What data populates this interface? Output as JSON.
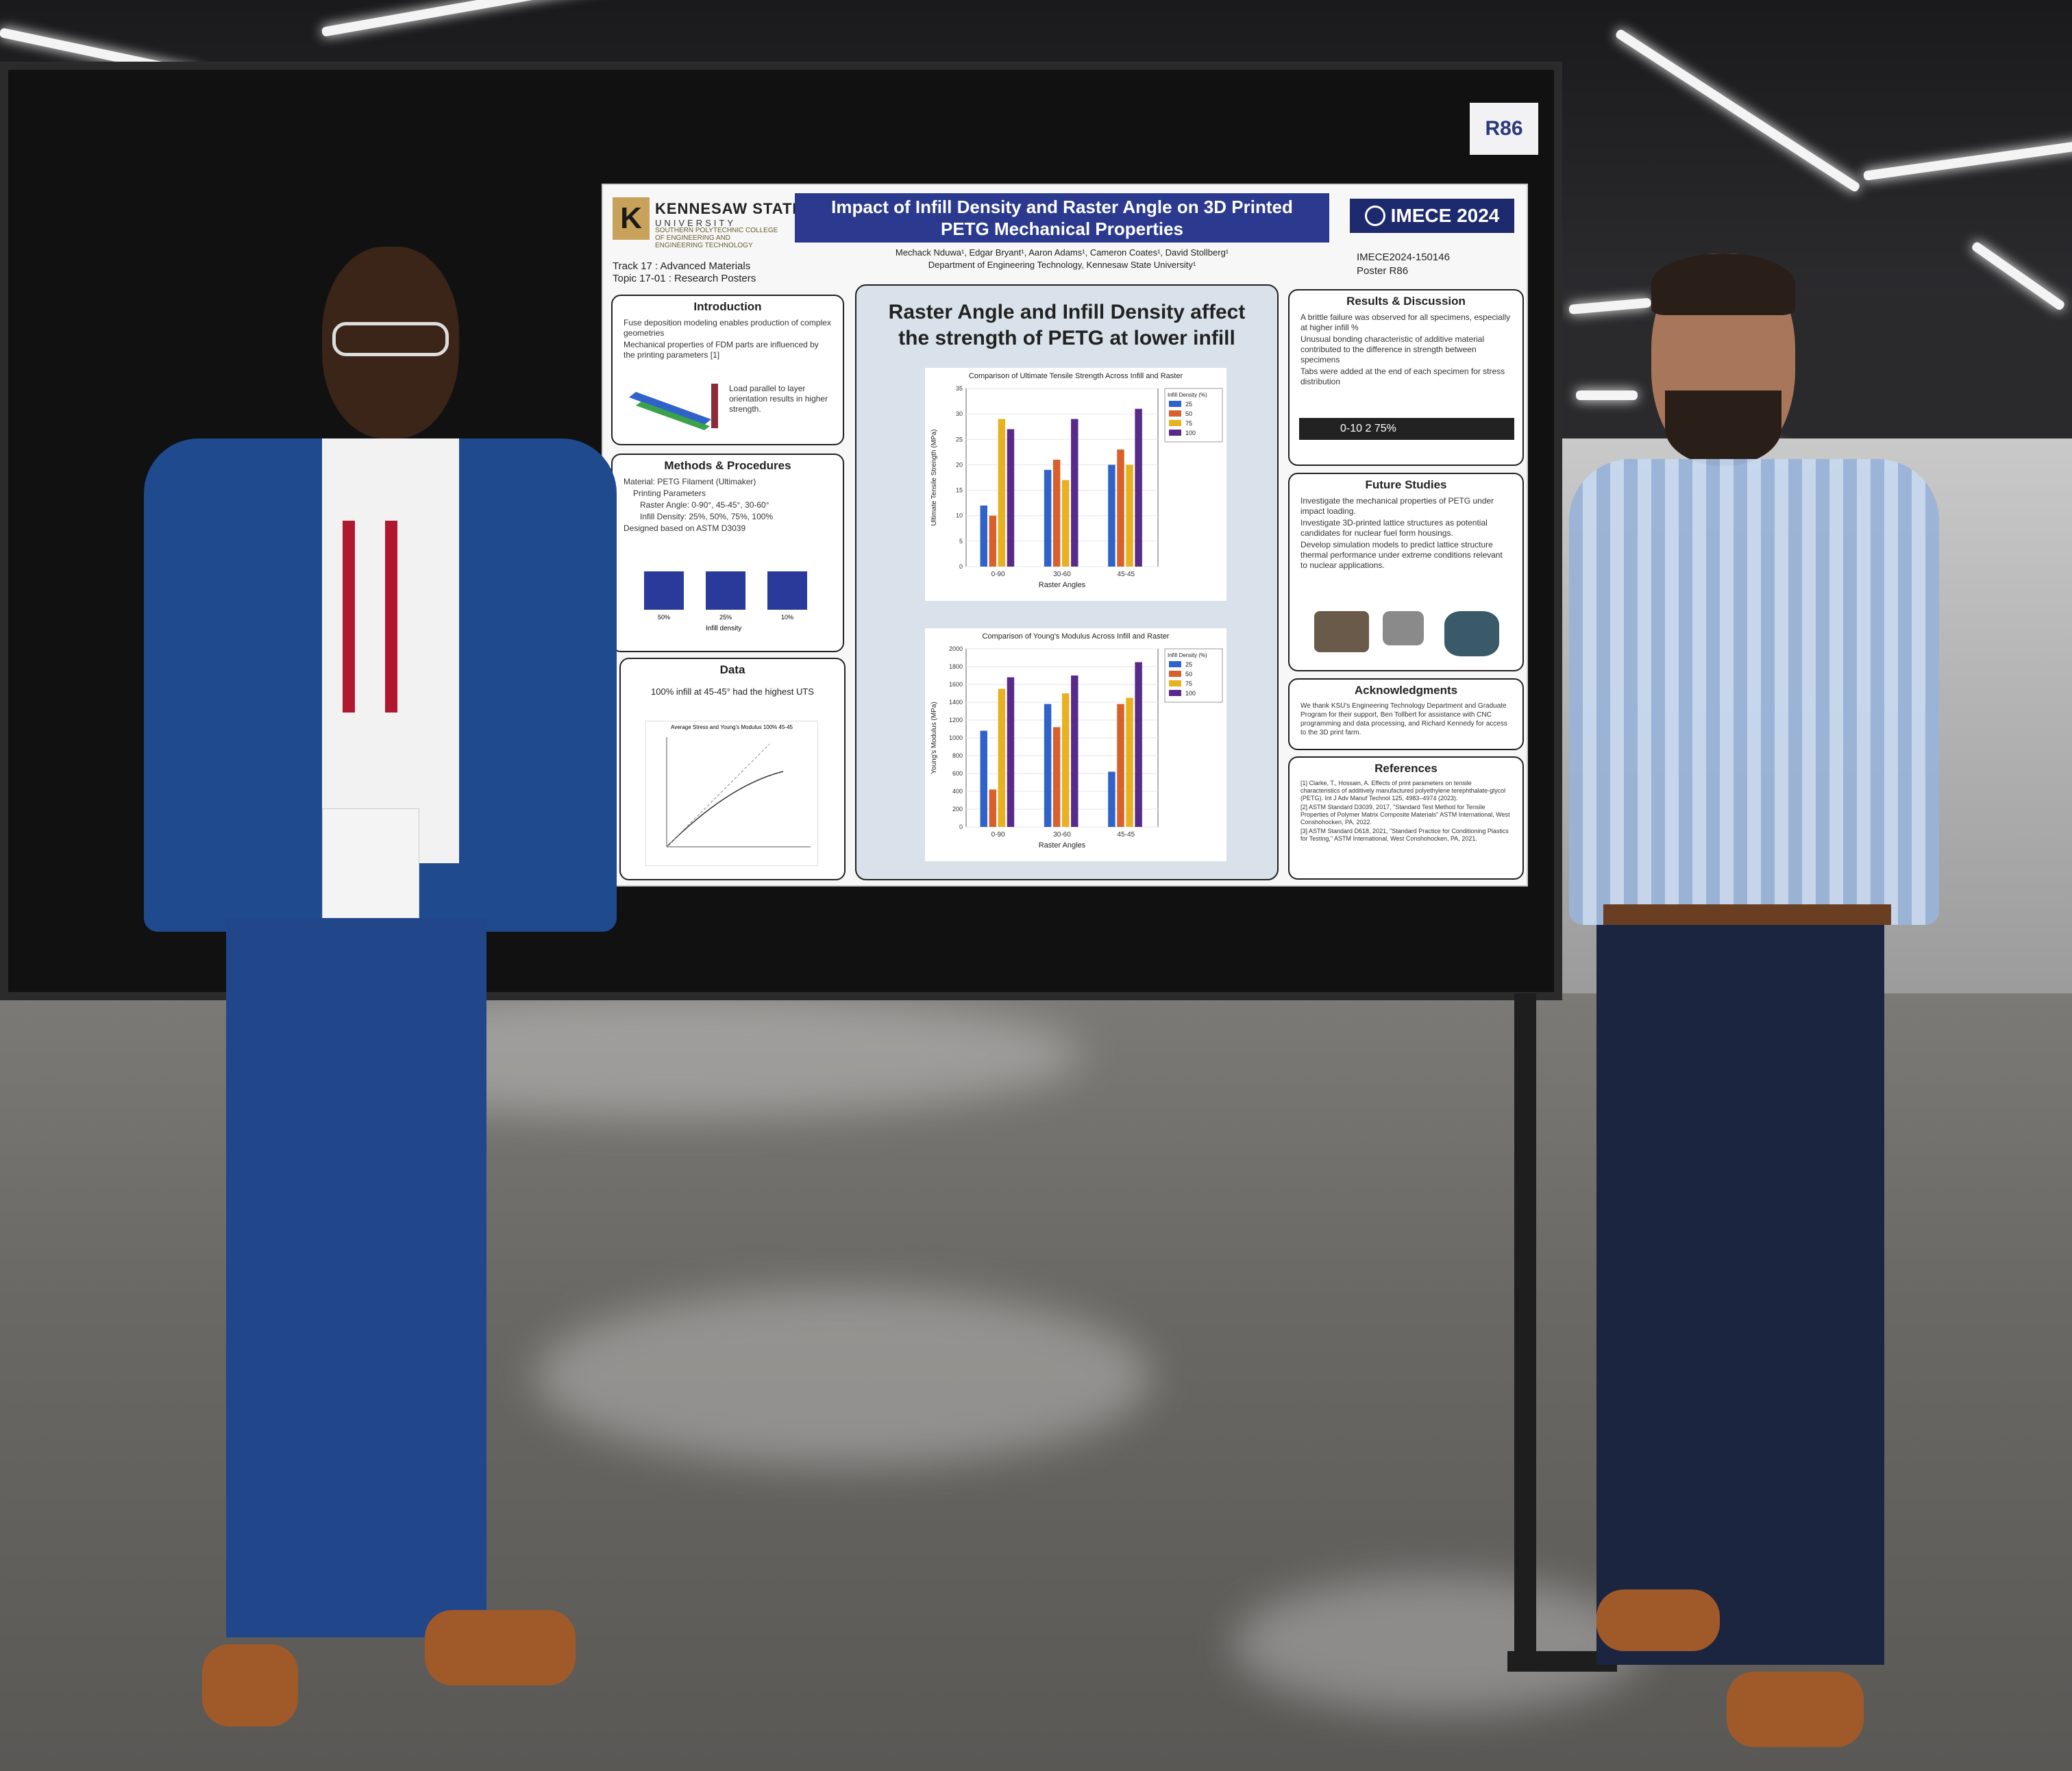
{
  "stand_tag": "R86",
  "poster": {
    "university_name": "KENNESAW STATE",
    "university_line2": "UNIVERSITY",
    "college": "SOUTHERN POLYTECHNIC COLLEGE OF ENGINEERING AND ENGINEERING TECHNOLOGY",
    "title_line1": "Impact of Infill Density and Raster Angle on 3D Printed",
    "title_line2": "PETG Mechanical Properties",
    "conference": "IMECE 2024",
    "authors": "Mechack Nduwa¹, Edgar Bryant¹, Aaron Adams¹, Cameron Coates¹, David Stollberg¹",
    "affiliation": "Department of Engineering Technology, Kennesaw State University¹",
    "track_line1": "Track 17 : Advanced Materials",
    "track_line2": "Topic 17-01 : Research Posters",
    "paper_id": "IMECE2024-150146",
    "poster_no": "Poster R86",
    "introduction": {
      "heading": "Introduction",
      "bullet1": "Fuse deposition modeling enables production of complex geometries",
      "bullet2": "Mechanical properties of FDM parts are influenced by the printing parameters [1]",
      "note": "Load parallel to layer orientation results in higher strength."
    },
    "methods": {
      "heading": "Methods & Procedures",
      "line1": "Material: PETG Filament (Ultimaker)",
      "line2": "Printing Parameters",
      "line3": "Raster Angle: 0-90°, 45-45°, 30-60°",
      "line4": "Infill Density: 25%, 50%, 75%, 100%",
      "line5": "Designed based on ASTM D3039",
      "swatch1": "50%",
      "swatch2": "25%",
      "swatch3": "10%",
      "caption": "Infill density"
    },
    "data_panel": {
      "heading": "Data",
      "summary": "100% infill at 45-45° had the highest UTS",
      "plot_title": "Average Stress and Young's Modulus 100% 45-45"
    },
    "headline_line1": "Raster Angle and Infill Density affect",
    "headline_line2": "the strength of PETG at lower infill",
    "results": {
      "heading": "Results & Discussion",
      "line1": "A brittle failure was observed for all specimens, especially at higher infill %",
      "line2": "Unusual bonding characteristic of additive material contributed to the difference in strength between specimens",
      "line3": "Tabs were added at the end of each specimen for stress distribution",
      "specimen_label": "0-10   2 75%"
    },
    "future": {
      "heading": "Future Studies",
      "line1": "Investigate the mechanical properties of PETG under impact loading.",
      "line2": "Investigate 3D-printed lattice structures as potential candidates for nuclear fuel form housings.",
      "line3": "Develop simulation models to predict lattice structure thermal performance under extreme conditions relevant to nuclear applications."
    },
    "ack": {
      "heading": "Acknowledgments",
      "text": "We thank KSU's Engineering Technology Department and Graduate Program for their support, Ben Tollbert for assistance with CNC programming and data processing, and Richard Kennedy for access to the 3D print farm."
    },
    "refs": {
      "heading": "References",
      "r1": "[1] Clarke, T., Hossain, A. Effects of print parameters on tensile characteristics of additively manufactured polyethylene terephthalate-glycol (PETG). Int J Adv Manuf Technol 125, 4983–4974 (2023).",
      "r2": "[2] ASTM Standard D3039, 2017, \"Standard Test Method for Tensile Properties of Polymer Matrix Composite Materials\" ASTM International, West Conshohocken, PA, 2022.",
      "r3": "[3] ASTM Standard D618, 2021, \"Standard Practice for Conditioning Plastics for Testing,\" ASTM International, West Conshohocken, PA, 2021."
    }
  },
  "chart_data": [
    {
      "type": "bar",
      "title": "Comparison of Ultimate Tensile Strength Across Infill and Raster",
      "xlabel": "Raster Angles",
      "ylabel": "Ultimate Tensile Strength (MPa)",
      "legend_title": "Infill Density (%)",
      "categories": [
        "0-90",
        "30-60",
        "45-45"
      ],
      "series": [
        {
          "name": "25",
          "color": "#2f63c9",
          "values": [
            12,
            19,
            20
          ]
        },
        {
          "name": "50",
          "color": "#d9602a",
          "values": [
            10,
            21,
            23
          ]
        },
        {
          "name": "75",
          "color": "#e6b21f",
          "values": [
            29,
            17,
            20
          ]
        },
        {
          "name": "100",
          "color": "#5a2a8a",
          "values": [
            27,
            29,
            31
          ]
        }
      ],
      "ylim": [
        0,
        35
      ]
    },
    {
      "type": "bar",
      "title": "Comparison of Young's Modulus Across Infill and Raster",
      "xlabel": "Raster Angles",
      "ylabel": "Young's Modulus (MPa)",
      "legend_title": "Infill Density (%)",
      "categories": [
        "0-90",
        "30-60",
        "45-45"
      ],
      "series": [
        {
          "name": "25",
          "color": "#2f63c9",
          "values": [
            1080,
            1380,
            620
          ]
        },
        {
          "name": "50",
          "color": "#d9602a",
          "values": [
            420,
            1120,
            1380
          ]
        },
        {
          "name": "75",
          "color": "#e6b21f",
          "values": [
            1550,
            1500,
            1450
          ]
        },
        {
          "name": "100",
          "color": "#5a2a8a",
          "values": [
            1680,
            1700,
            1850
          ]
        }
      ],
      "ylim": [
        0,
        2000
      ],
      "yticks": [
        0,
        200,
        400,
        600,
        800,
        1000,
        1200,
        1400,
        1600,
        1800,
        2000
      ]
    }
  ]
}
